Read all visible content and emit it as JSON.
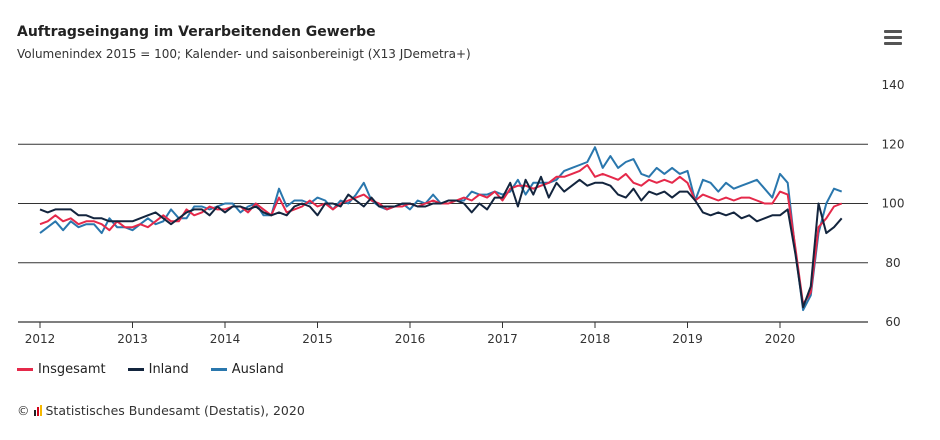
{
  "header": {
    "title": "Auftragseingang im Verarbeitenden Gewerbe",
    "subtitle": "Volumenindex 2015 = 100; Kalender- und saisonbereinigt (X13 JDemetra+)",
    "menu_icon": "hamburger-menu-icon"
  },
  "credit": {
    "copyright": "©",
    "text": "Statistisches Bundesamt (Destatis), 2020"
  },
  "chart_data": {
    "type": "line",
    "title": "Auftragseingang im Verarbeitenden Gewerbe",
    "subtitle": "Volumenindex 2015 = 100; Kalender- und saisonbereinigt (X13 JDemetra+)",
    "x_start": "2012-01",
    "x_end": "2020-09",
    "frequency": "monthly",
    "x_ticks": [
      "2012",
      "2013",
      "2014",
      "2015",
      "2016",
      "2017",
      "2018",
      "2019",
      "2020"
    ],
    "y_ticks": [
      60,
      80,
      100,
      120,
      140
    ],
    "ylim": [
      60,
      140
    ],
    "grid": "horizontal",
    "legend": "bottom-left",
    "series": [
      {
        "name": "Insgesamt",
        "color": "#e5294a",
        "values": [
          93,
          94,
          96,
          94,
          95,
          93,
          94,
          94,
          93,
          91,
          94,
          92,
          92,
          93,
          92,
          94,
          96,
          94,
          94,
          98,
          96,
          97,
          99,
          98,
          98,
          99,
          99,
          97,
          100,
          98,
          96,
          102,
          97,
          98,
          99,
          101,
          99,
          100,
          98,
          100,
          101,
          102,
          103,
          101,
          100,
          98,
          99,
          99,
          100,
          99,
          100,
          101,
          100,
          100,
          101,
          102,
          101,
          103,
          102,
          104,
          101,
          105,
          106,
          106,
          105,
          106,
          107,
          109,
          109,
          110,
          111,
          113,
          109,
          110,
          109,
          108,
          110,
          107,
          106,
          108,
          107,
          108,
          107,
          109,
          107,
          101,
          103,
          102,
          101,
          102,
          101,
          102,
          102,
          101,
          100,
          100,
          104,
          103,
          85,
          66,
          70,
          92,
          95,
          99,
          100
        ]
      },
      {
        "name": "Inland",
        "color": "#13253e",
        "values": [
          98,
          97,
          98,
          98,
          98,
          96,
          96,
          95,
          95,
          94,
          94,
          94,
          94,
          95,
          96,
          97,
          95,
          93,
          95,
          97,
          98,
          98,
          96,
          99,
          97,
          99,
          99,
          98,
          99,
          97,
          96,
          97,
          96,
          99,
          100,
          99,
          96,
          100,
          100,
          99,
          103,
          101,
          99,
          102,
          99,
          99,
          99,
          100,
          100,
          99,
          99,
          100,
          100,
          101,
          101,
          100,
          97,
          100,
          98,
          102,
          102,
          107,
          99,
          108,
          103,
          109,
          102,
          107,
          104,
          106,
          108,
          106,
          107,
          107,
          106,
          103,
          102,
          105,
          101,
          104,
          103,
          104,
          102,
          104,
          104,
          101,
          97,
          96,
          97,
          96,
          97,
          95,
          96,
          94,
          95,
          96,
          96,
          98,
          83,
          65,
          72,
          100,
          90,
          92,
          95
        ]
      },
      {
        "name": "Ausland",
        "color": "#2a77ad",
        "values": [
          90,
          92,
          94,
          91,
          94,
          92,
          93,
          93,
          90,
          95,
          92,
          92,
          91,
          93,
          95,
          93,
          94,
          98,
          95,
          95,
          99,
          99,
          98,
          99,
          100,
          100,
          97,
          99,
          100,
          96,
          96,
          105,
          99,
          101,
          101,
          100,
          102,
          101,
          98,
          101,
          100,
          103,
          107,
          101,
          99,
          98,
          99,
          100,
          98,
          101,
          100,
          103,
          100,
          101,
          101,
          101,
          104,
          103,
          103,
          104,
          103,
          104,
          108,
          103,
          107,
          107,
          107,
          108,
          111,
          112,
          113,
          114,
          119,
          112,
          116,
          112,
          114,
          115,
          110,
          109,
          112,
          110,
          112,
          110,
          111,
          101,
          108,
          107,
          104,
          107,
          105,
          106,
          107,
          108,
          105,
          102,
          110,
          107,
          84,
          64,
          69,
          90,
          100,
          105,
          104
        ]
      }
    ]
  }
}
